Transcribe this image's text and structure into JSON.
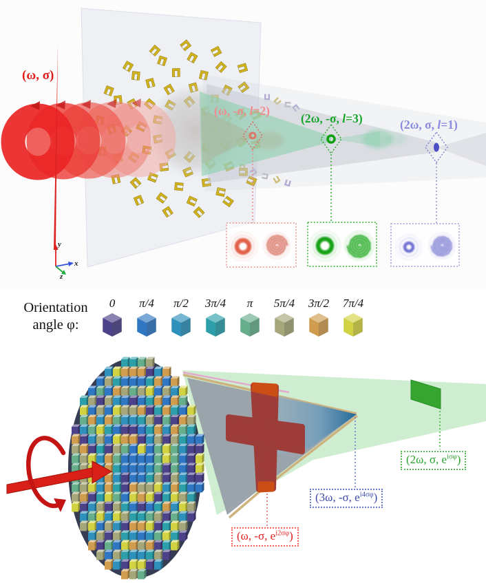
{
  "top_panel": {
    "input_beam_label": "(ω, σ)",
    "output_beams": [
      {
        "pre": "(ω, -σ, ",
        "italic": "l",
        "post": "=2)",
        "color": "#ef8c8c"
      },
      {
        "pre": "(2ω, -σ, ",
        "italic": "l",
        "post": "=3)",
        "color": "#17a62b"
      },
      {
        "pre": "(2ω, σ, ",
        "italic": "l",
        "post": "=1)",
        "color": "#8a8adf"
      }
    ],
    "axes": {
      "x_label": "x",
      "y_label": "y",
      "z_label": "z"
    },
    "colors": {
      "input_red": "#e31b1b",
      "antenna_gold": "#d2b31c",
      "beam_gray": "#c3c7d2",
      "beam_red": "#d98f80",
      "beam_green": "#85cfa9",
      "focus_blue": "#4d4dc4"
    }
  },
  "legend": {
    "title_line1": "Orientation",
    "title_line2": "angle φ:",
    "items": [
      {
        "label": "0",
        "color": "#4c4289"
      },
      {
        "label": "π/4",
        "color": "#2f77c3"
      },
      {
        "label": "π/2",
        "color": "#2f90bb"
      },
      {
        "label": "3π/4",
        "color": "#2d9faa"
      },
      {
        "label": "π",
        "color": "#66ae8c"
      },
      {
        "label": "5π/4",
        "color": "#a5a679"
      },
      {
        "label": "3π/2",
        "color": "#d09d4f"
      },
      {
        "label": "7π/4",
        "color": "#d2d343"
      }
    ]
  },
  "bottom_panel": {
    "output_beams": [
      {
        "pre": "(ω, -σ, e",
        "sup": "i2σφ",
        "post": ")",
        "color": "#e02020"
      },
      {
        "pre": "(3ω, -σ, e",
        "sup": "i4σφ",
        "post": ")",
        "color": "#3a49ac"
      },
      {
        "pre": "(2ω, σ, e",
        "sup": "iσφ",
        "post": ")",
        "color": "#2aa32e"
      }
    ],
    "colors": {
      "beam_gray": "#98a0a8",
      "beam_blue_tip": "#236996",
      "beam_green": "#c3e9c7",
      "screen_green": "#35a52f",
      "cross_red": "#9d3c38",
      "cross_cap_orange": "#cb4e16",
      "pump_red": "#d92018"
    }
  }
}
